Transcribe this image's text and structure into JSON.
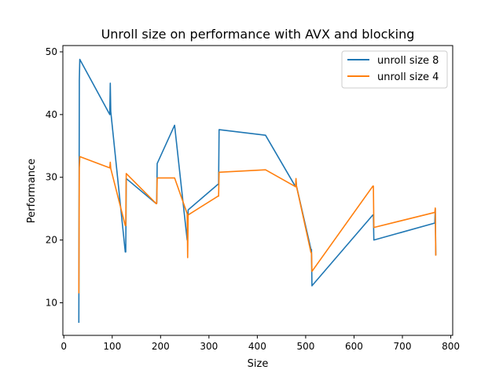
{
  "chart_data": {
    "type": "line",
    "title": "Unroll size on performance with AVX and blocking",
    "xlabel": "Size",
    "ylabel": "Performance",
    "xlim": [
      -2,
      804
    ],
    "ylim": [
      4.8,
      51.0
    ],
    "xticks": [
      0,
      100,
      200,
      300,
      400,
      500,
      600,
      700,
      800
    ],
    "yticks": [
      10,
      20,
      30,
      40,
      50
    ],
    "grid": false,
    "legend": "top-right",
    "series": [
      {
        "name": "unroll size 8",
        "color": "#1f77b4",
        "x": [
          31,
          32,
          32,
          33,
          95,
          96,
          97,
          127,
          128,
          129,
          191,
          192,
          193,
          229,
          255,
          256,
          257,
          319,
          320,
          321,
          417,
          479,
          480,
          481,
          511,
          512,
          513,
          639,
          640,
          641,
          767,
          768,
          769
        ],
        "y": [
          6.8,
          44.5,
          45.4,
          48.8,
          40.0,
          45.0,
          40.5,
          18.1,
          18.1,
          29.8,
          25.8,
          25.9,
          32.2,
          38.3,
          20.0,
          20.5,
          24.8,
          28.9,
          28.9,
          37.6,
          36.7,
          28.5,
          29.5,
          28.6,
          18.5,
          18.5,
          12.7,
          24.0,
          24.0,
          20.0,
          22.7,
          25.0,
          17.6
        ]
      },
      {
        "name": "unroll size 4",
        "color": "#ff7f0e",
        "x": [
          31,
          32,
          32,
          33,
          95,
          96,
          97,
          127,
          128,
          129,
          191,
          192,
          193,
          229,
          255,
          256,
          257,
          319,
          320,
          321,
          417,
          479,
          480,
          481,
          511,
          512,
          513,
          639,
          640,
          641,
          767,
          768,
          769
        ],
        "y": [
          11.5,
          31.5,
          31.5,
          33.3,
          31.5,
          32.4,
          31.4,
          22.3,
          22.3,
          30.6,
          25.8,
          25.8,
          29.9,
          29.9,
          24.2,
          17.2,
          24.0,
          27.0,
          27.0,
          30.8,
          31.2,
          28.5,
          29.8,
          28.6,
          18.0,
          18.0,
          15.0,
          28.6,
          28.6,
          22.0,
          24.4,
          25.1,
          17.5
        ]
      }
    ]
  }
}
